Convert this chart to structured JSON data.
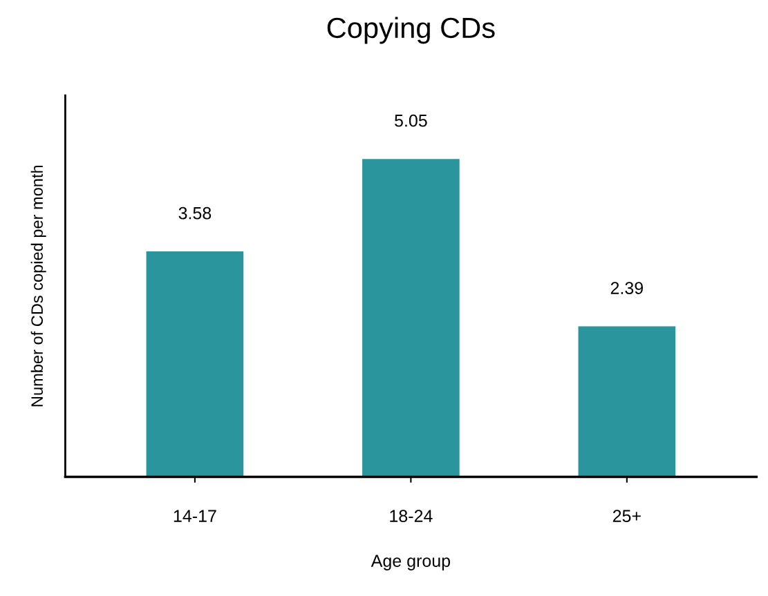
{
  "chart_data": {
    "type": "bar",
    "title": "Copying CDs",
    "xlabel": "Age group",
    "ylabel": "Number of CDs copied per month",
    "categories": [
      "14-17",
      "18-24",
      "25+"
    ],
    "values": [
      3.58,
      5.05,
      2.39
    ],
    "color": "#2a959c",
    "data_labels": true,
    "tick_labels": "x",
    "grid": false,
    "legend": false
  }
}
